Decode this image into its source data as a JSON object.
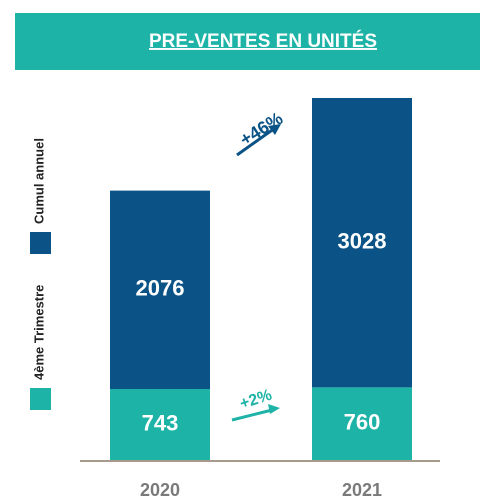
{
  "chart_data": {
    "type": "stacked-bar",
    "title": "PRE-VENTES EN UNITÉS",
    "categories": [
      "2020",
      "2021"
    ],
    "series": [
      {
        "name": "4ème Trimestre",
        "color": "#1db3a6",
        "values": [
          743,
          760
        ]
      },
      {
        "name": "Cumul annuel",
        "color": "#0b5386",
        "values": [
          2076,
          3028
        ]
      }
    ],
    "annotations": [
      "+46%",
      "+2%"
    ]
  }
}
